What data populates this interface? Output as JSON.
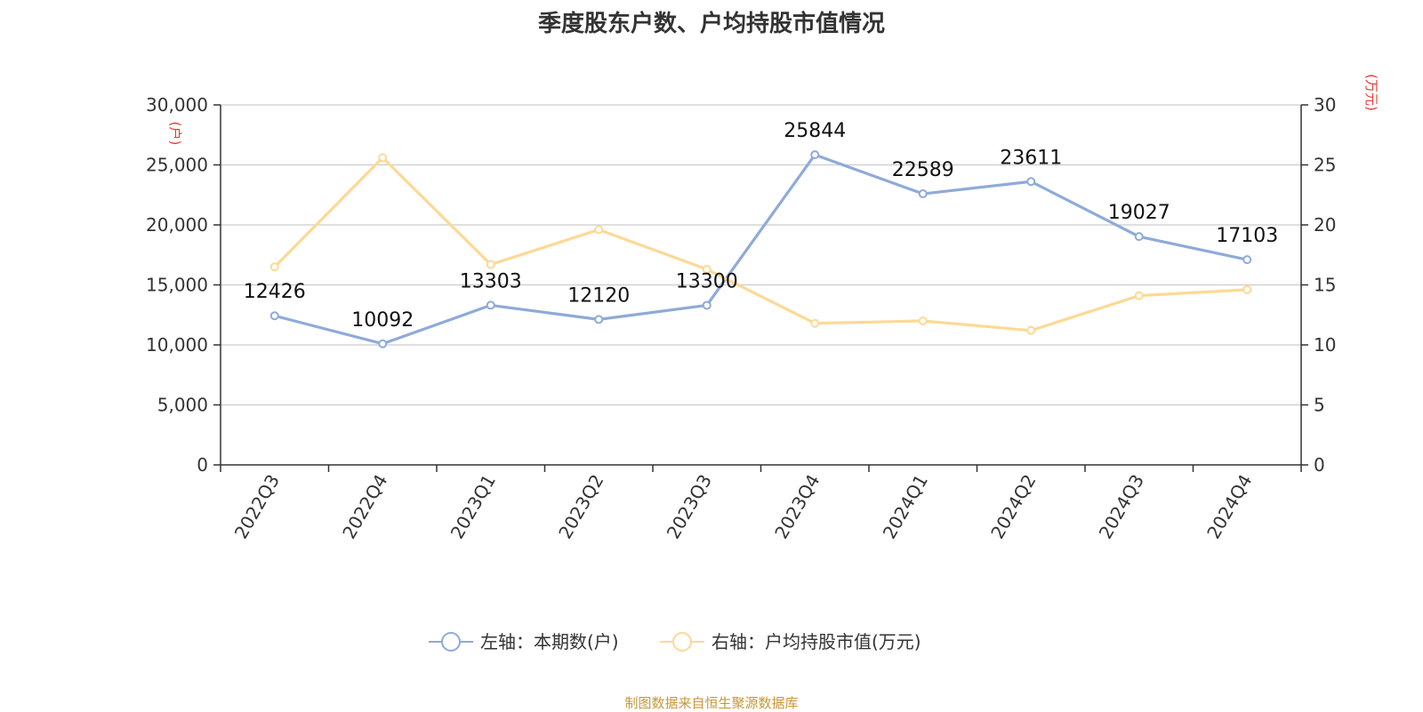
{
  "chart_data": {
    "type": "line",
    "title": "季度股东户数、户均持股市值情况",
    "categories": [
      "2022Q3",
      "2022Q4",
      "2023Q1",
      "2023Q2",
      "2023Q3",
      "2023Q4",
      "2024Q1",
      "2024Q2",
      "2024Q3",
      "2024Q4"
    ],
    "left_axis": {
      "unit": "(户)",
      "ylim": [
        0,
        30000
      ],
      "ticks": [
        0,
        5000,
        10000,
        15000,
        20000,
        25000,
        30000
      ],
      "tick_labels": [
        "0",
        "5,000",
        "10,000",
        "15,000",
        "20,000",
        "25,000",
        "30,000"
      ]
    },
    "right_axis": {
      "unit": "(万元)",
      "ylim": [
        0,
        30
      ],
      "ticks": [
        0,
        5,
        10,
        15,
        20,
        25,
        30
      ],
      "tick_labels": [
        "0",
        "5",
        "10",
        "15",
        "20",
        "25",
        "30"
      ]
    },
    "series": [
      {
        "name": "左轴：本期数(户)",
        "axis": "left",
        "color": "#8eaad8",
        "values": [
          12426,
          10092,
          13303,
          12120,
          13300,
          25844,
          22589,
          23611,
          19027,
          17103
        ],
        "labels": [
          "12426",
          "10092",
          "13303",
          "12120",
          "13300",
          "25844",
          "22589",
          "23611",
          "19027",
          "17103"
        ]
      },
      {
        "name": "右轴：户均持股市值(万元)",
        "axis": "right",
        "color": "#fdd995",
        "values": [
          16.5,
          25.6,
          16.7,
          19.6,
          16.3,
          11.8,
          12.0,
          11.2,
          14.1,
          14.6
        ]
      }
    ],
    "grid": true,
    "legend_position": "bottom-center",
    "source_note": "制图数据来自恒生聚源数据库",
    "unit_color": "#e53935"
  }
}
